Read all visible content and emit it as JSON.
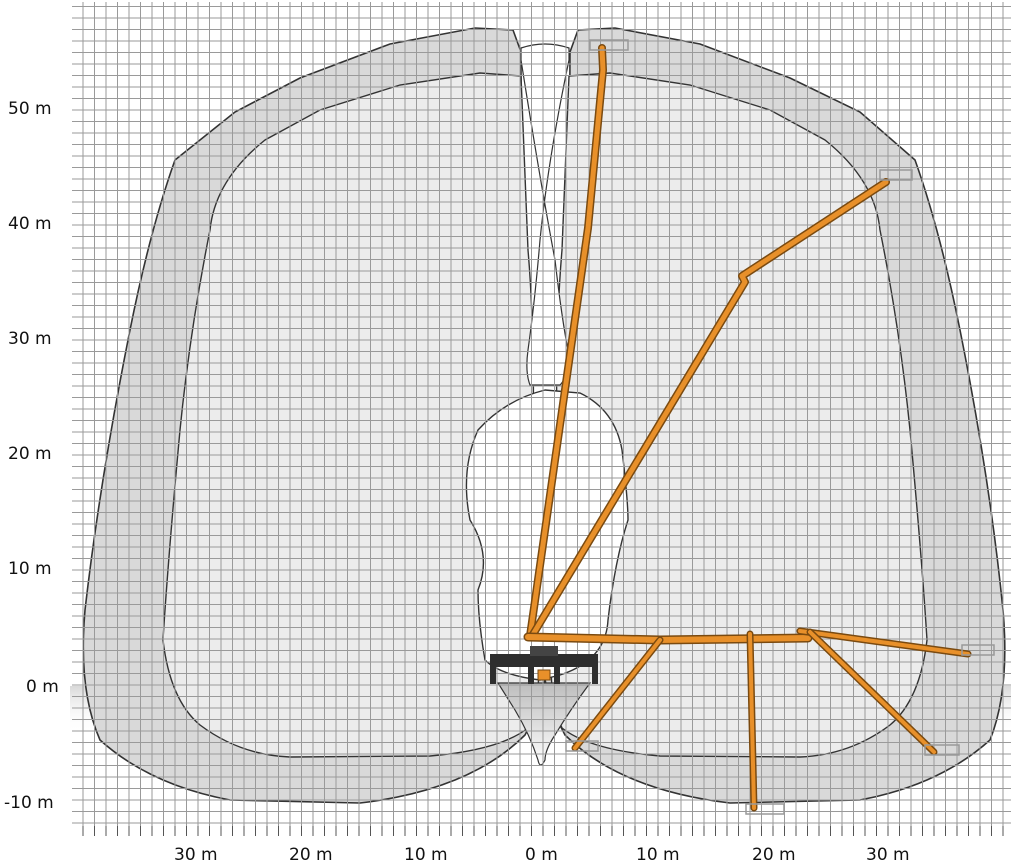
{
  "y_axis": {
    "unit": "m",
    "ticks": [
      {
        "value": 50,
        "label": "50 m"
      },
      {
        "value": 40,
        "label": "40 m"
      },
      {
        "value": 30,
        "label": "30 m"
      },
      {
        "value": 20,
        "label": "20 m"
      },
      {
        "value": 10,
        "label": "10 m"
      },
      {
        "value": 0,
        "label": "0 m"
      },
      {
        "value": -10,
        "label": "-10 m"
      }
    ]
  },
  "x_axis": {
    "unit": "m",
    "ticks": [
      {
        "value": -30,
        "label": "30 m"
      },
      {
        "value": -20,
        "label": "20 m"
      },
      {
        "value": -10,
        "label": "10 m"
      },
      {
        "value": 0,
        "label": "0 m"
      },
      {
        "value": 10,
        "label": "10 m"
      },
      {
        "value": 20,
        "label": "20 m"
      },
      {
        "value": 30,
        "label": "30 m"
      }
    ]
  },
  "colors": {
    "boom": "#e8902a",
    "boom_outline": "#7a4a10",
    "envelope_outer": "#d6d6d6",
    "envelope_inner": "#ececec",
    "grid": "#9a9a9a",
    "chassis": "#2e2e2e"
  }
}
